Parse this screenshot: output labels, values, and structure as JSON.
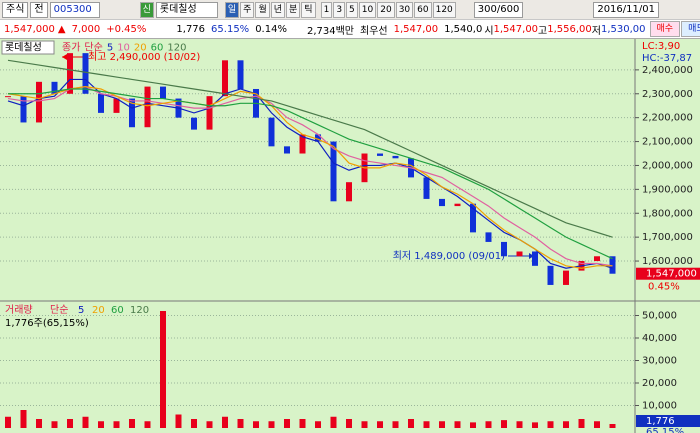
{
  "toolbar": {
    "market": "주식",
    "scope": "전",
    "code": "005300",
    "badge": "신",
    "name": "롯데칠성",
    "periods": [
      "일",
      "주",
      "월",
      "년",
      "분",
      "틱"
    ],
    "intervals": [
      "1",
      "3",
      "5",
      "10",
      "20",
      "30",
      "60",
      "120"
    ],
    "count": "300/600",
    "date": "2016/11/01"
  },
  "quote": {
    "price": "1,547,000",
    "arrow": "▲",
    "change": "7,000",
    "change_pct": "+0.45%",
    "volume": "1,776",
    "volume_pct": "65.15%",
    "turnover_pct": "0.14%",
    "amount": "2,734백만",
    "best_label": "최우선",
    "best_ask": "1,547,00",
    "best_bid": "1,540,0",
    "open_label": "시",
    "open": "1,547,00",
    "high_label": "고",
    "high": "1,556,00",
    "low_label": "저",
    "low": "1,530,00",
    "buy": "매수",
    "sell": "매도"
  },
  "chart_data": [
    {
      "type": "line",
      "title": "롯데칠성",
      "ma_label": "단순",
      "ylim": [
        1437000,
        2525000
      ],
      "yticks": [
        {
          "value": 1600000,
          "label": "1,600,000"
        },
        {
          "value": 1700000,
          "label": "1,700,000"
        },
        {
          "value": 1800000,
          "label": "1,800,000"
        },
        {
          "value": 1900000,
          "label": "1,900,000"
        },
        {
          "value": 2000000,
          "label": "2,000,000"
        },
        {
          "value": 2100000,
          "label": "2,100,000"
        },
        {
          "value": 2200000,
          "label": "2,200,000"
        },
        {
          "value": 2300000,
          "label": "2,300,000"
        },
        {
          "value": 2400000,
          "label": "2,400,000"
        }
      ],
      "grid": true,
      "series": [
        {
          "name": "종가",
          "style": "candle",
          "color": "#e0204a",
          "up_color": "#e8001c",
          "down_color": "#1030d8",
          "values": [
            2290000,
            2180000,
            2350000,
            2300000,
            2470000,
            2300000,
            2220000,
            2280000,
            2160000,
            2330000,
            2280000,
            2200000,
            2150000,
            2290000,
            2440000,
            2320000,
            2200000,
            2080000,
            2050000,
            2130000,
            2100000,
            1850000,
            1930000,
            2050000,
            2040000,
            2030000,
            1950000,
            1860000,
            1830000,
            1840000,
            1720000,
            1680000,
            1620000,
            1640000,
            1580000,
            1500000,
            1560000,
            1600000,
            1620000,
            1547000
          ]
        },
        {
          "name": "5",
          "color": "#1020c0",
          "values": [
            2270000,
            2250000,
            2280000,
            2290000,
            2360000,
            2360000,
            2300000,
            2280000,
            2240000,
            2260000,
            2250000,
            2240000,
            2220000,
            2240000,
            2300000,
            2320000,
            2300000,
            2220000,
            2160000,
            2120000,
            2100000,
            2010000,
            1980000,
            2000000,
            2000000,
            2010000,
            1990000,
            1950000,
            1910000,
            1870000,
            1820000,
            1770000,
            1720000,
            1690000,
            1650000,
            1590000,
            1570000,
            1580000,
            1590000,
            1570000
          ]
        },
        {
          "name": "10",
          "color": "#e060a0",
          "values": [
            2280000,
            2270000,
            2270000,
            2280000,
            2320000,
            2330000,
            2300000,
            2290000,
            2270000,
            2270000,
            2260000,
            2250000,
            2240000,
            2240000,
            2260000,
            2280000,
            2290000,
            2260000,
            2200000,
            2170000,
            2130000,
            2070000,
            2040000,
            2020000,
            2010000,
            2000000,
            1990000,
            1970000,
            1950000,
            1910000,
            1870000,
            1830000,
            1780000,
            1740000,
            1700000,
            1650000,
            1610000,
            1590000,
            1590000,
            1580000
          ]
        },
        {
          "name": "20",
          "color": "#f0a000",
          "values": [
            2300000,
            2290000,
            2280000,
            2300000,
            2320000,
            2330000,
            2320000,
            2290000,
            2260000,
            2250000,
            2260000,
            2270000,
            2260000,
            2250000,
            2280000,
            2310000,
            2300000,
            2250000,
            2180000,
            2130000,
            2110000,
            2080000,
            2010000,
            1990000,
            1990000,
            2010000,
            2000000,
            1960000,
            1910000,
            1880000,
            1840000,
            1780000,
            1730000,
            1690000,
            1650000,
            1610000,
            1580000,
            1570000,
            1580000,
            1580000
          ]
        },
        {
          "name": "60",
          "color": "#20a040",
          "values": [
            2300000,
            2300000,
            2300000,
            2310000,
            2320000,
            2320000,
            2310000,
            2300000,
            2290000,
            2280000,
            2280000,
            2270000,
            2260000,
            2250000,
            2250000,
            2260000,
            2260000,
            2250000,
            2230000,
            2200000,
            2170000,
            2140000,
            2110000,
            2090000,
            2070000,
            2050000,
            2030000,
            2010000,
            1990000,
            1960000,
            1930000,
            1900000,
            1860000,
            1820000,
            1780000,
            1740000,
            1700000,
            1670000,
            1640000,
            1610000
          ]
        },
        {
          "name": "120",
          "color": "#4a7a4a",
          "values": [
            2440000,
            2430000,
            2420000,
            2410000,
            2400000,
            2390000,
            2380000,
            2370000,
            2360000,
            2350000,
            2340000,
            2330000,
            2320000,
            2310000,
            2300000,
            2290000,
            2280000,
            2270000,
            2250000,
            2230000,
            2210000,
            2190000,
            2170000,
            2150000,
            2120000,
            2090000,
            2060000,
            2030000,
            2000000,
            1970000,
            1940000,
            1910000,
            1880000,
            1850000,
            1820000,
            1790000,
            1760000,
            1740000,
            1720000,
            1700000
          ]
        }
      ],
      "annotations": [
        "최고 2,490,000 (10/02)",
        "최저 1,489,000 (09/01)"
      ],
      "side_labels": [
        "LC:3,90",
        "HC:-37,87"
      ],
      "last_label": "1,547,000",
      "last_pct": "0.45%"
    },
    {
      "type": "bar",
      "title": "거래량",
      "ma_label": "단순",
      "ma_periods": [
        5,
        20,
        60,
        120
      ],
      "info": "1,776주(65,15%)",
      "ylim": [
        0,
        56000
      ],
      "yticks": [
        {
          "value": 10000,
          "label": "10,000"
        },
        {
          "value": 20000,
          "label": "20,000"
        },
        {
          "value": 30000,
          "label": "30,000"
        },
        {
          "value": 40000,
          "label": "40,000"
        },
        {
          "value": 50000,
          "label": "50,000"
        }
      ],
      "grid": true,
      "series": [
        {
          "name": "거래량",
          "color": "#e8001c",
          "values": [
            5000,
            8000,
            4000,
            3000,
            4000,
            5000,
            3000,
            3000,
            4000,
            3000,
            52000,
            6000,
            4000,
            3000,
            5000,
            4000,
            3000,
            3000,
            4000,
            4000,
            3000,
            5000,
            4000,
            3000,
            3000,
            3000,
            4000,
            3000,
            3000,
            3000,
            2500,
            3000,
            3500,
            3000,
            2500,
            3000,
            3000,
            4000,
            3000,
            1776
          ]
        }
      ],
      "last_label": "1,776",
      "last_pct": "65,15%"
    }
  ]
}
